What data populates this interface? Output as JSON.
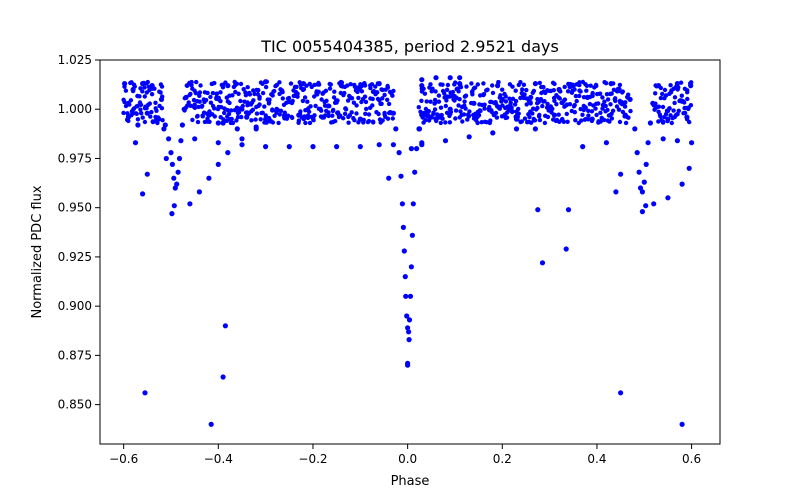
{
  "chart_data": {
    "type": "scatter",
    "title": "TIC 0055404385, period 2.9521 days",
    "xlabel": "Phase",
    "ylabel": "Normalized PDC flux",
    "xlim": [
      -0.65,
      0.66
    ],
    "ylim": [
      0.83,
      1.025
    ],
    "xticks": [
      -0.6,
      -0.4,
      -0.2,
      0.0,
      0.2,
      0.4,
      0.6
    ],
    "xtick_labels": [
      "−0.6",
      "−0.4",
      "−0.2",
      "0.0",
      "0.2",
      "0.4",
      "0.6"
    ],
    "yticks": [
      0.85,
      0.875,
      0.9,
      0.925,
      0.95,
      0.975,
      1.0,
      1.025
    ],
    "ytick_labels": [
      "0.850",
      "0.875",
      "0.900",
      "0.925",
      "0.950",
      "0.975",
      "1.000",
      "1.025"
    ],
    "grid": false,
    "marker_color": "#0000ff",
    "series": [
      {
        "name": "PDC flux",
        "points": [
          [
            -0.598,
            1.013
          ],
          [
            -0.59,
            0.996
          ],
          [
            -0.58,
            1.01
          ],
          [
            -0.57,
            0.992
          ],
          [
            -0.56,
            1.013
          ],
          [
            -0.55,
            0.998
          ],
          [
            -0.54,
            1.012
          ],
          [
            -0.53,
            0.994
          ],
          [
            -0.52,
            1.005
          ],
          [
            -0.512,
            0.992
          ],
          [
            -0.505,
            0.985
          ],
          [
            -0.5,
            0.978
          ],
          [
            -0.497,
            0.972
          ],
          [
            -0.494,
            0.965
          ],
          [
            -0.491,
            0.96
          ],
          [
            -0.488,
            0.962
          ],
          [
            -0.485,
            0.968
          ],
          [
            -0.482,
            0.975
          ],
          [
            -0.479,
            0.984
          ],
          [
            -0.476,
            0.992
          ],
          [
            -0.472,
            1.0
          ],
          [
            -0.468,
            1.006
          ],
          [
            -0.498,
            0.947
          ],
          [
            -0.493,
            0.951
          ],
          [
            -0.51,
            0.975
          ],
          [
            -0.515,
            0.99
          ],
          [
            -0.46,
            1.013
          ],
          [
            -0.42,
            0.998
          ],
          [
            -0.38,
            1.012
          ],
          [
            -0.34,
            0.996
          ],
          [
            -0.3,
            1.014
          ],
          [
            -0.26,
            0.997
          ],
          [
            -0.22,
            1.013
          ],
          [
            -0.18,
            0.996
          ],
          [
            -0.14,
            1.012
          ],
          [
            -0.1,
            0.995
          ],
          [
            -0.06,
            1.013
          ],
          [
            -0.03,
            0.998
          ],
          [
            -0.45,
            0.985
          ],
          [
            -0.4,
            0.983
          ],
          [
            -0.35,
            0.982
          ],
          [
            -0.3,
            0.981
          ],
          [
            -0.25,
            0.981
          ],
          [
            -0.2,
            0.981
          ],
          [
            -0.15,
            0.981
          ],
          [
            -0.1,
            0.981
          ],
          [
            -0.06,
            0.982
          ],
          [
            -0.03,
            0.982
          ],
          [
            -0.46,
            0.952
          ],
          [
            -0.44,
            0.958
          ],
          [
            -0.42,
            0.965
          ],
          [
            -0.4,
            0.972
          ],
          [
            -0.38,
            0.978
          ],
          [
            -0.35,
            0.985
          ],
          [
            -0.32,
            0.99
          ],
          [
            -0.29,
            0.994
          ],
          [
            -0.26,
            0.996
          ],
          [
            -0.23,
            0.997
          ],
          [
            -0.42,
            0.997
          ],
          [
            -0.39,
            0.993
          ],
          [
            -0.36,
            0.99
          ],
          [
            -0.32,
            0.991
          ],
          [
            -0.025,
            0.99
          ],
          [
            -0.018,
            0.978
          ],
          [
            -0.014,
            0.966
          ],
          [
            -0.011,
            0.952
          ],
          [
            -0.009,
            0.94
          ],
          [
            -0.007,
            0.928
          ],
          [
            -0.005,
            0.915
          ],
          [
            -0.004,
            0.905
          ],
          [
            -0.002,
            0.895
          ],
          [
            0.0,
            0.889
          ],
          [
            0.002,
            0.887
          ],
          [
            0.004,
            0.893
          ],
          [
            0.006,
            0.905
          ],
          [
            0.008,
            0.92
          ],
          [
            0.01,
            0.936
          ],
          [
            0.012,
            0.952
          ],
          [
            0.015,
            0.968
          ],
          [
            0.019,
            0.98
          ],
          [
            0.024,
            0.99
          ],
          [
            0.003,
            0.883
          ],
          [
            0.0,
            0.871
          ],
          [
            0.008,
            0.98
          ],
          [
            0.03,
            1.012
          ],
          [
            0.07,
            0.996
          ],
          [
            0.11,
            1.013
          ],
          [
            0.15,
            0.997
          ],
          [
            0.19,
            1.012
          ],
          [
            0.23,
            0.995
          ],
          [
            0.27,
            1.013
          ],
          [
            0.31,
            0.997
          ],
          [
            0.35,
            1.012
          ],
          [
            0.39,
            0.995
          ],
          [
            0.43,
            1.013
          ],
          [
            0.46,
            0.997
          ],
          [
            0.03,
            0.983
          ],
          [
            0.08,
            0.984
          ],
          [
            0.13,
            0.986
          ],
          [
            0.18,
            0.988
          ],
          [
            0.23,
            0.99
          ],
          [
            0.27,
            0.99
          ],
          [
            0.025,
            0.99
          ],
          [
            0.05,
            0.996
          ],
          [
            0.09,
            1.0
          ],
          [
            0.14,
            1.003
          ],
          [
            0.2,
            1.005
          ],
          [
            0.26,
            1.006
          ],
          [
            0.03,
            1.015
          ],
          [
            0.06,
            1.016
          ],
          [
            0.09,
            1.016
          ],
          [
            0.11,
            1.016
          ],
          [
            0.47,
            1.005
          ],
          [
            0.48,
            0.99
          ],
          [
            0.485,
            0.978
          ],
          [
            0.489,
            0.968
          ],
          [
            0.492,
            0.96
          ],
          [
            0.496,
            0.958
          ],
          [
            0.5,
            0.963
          ],
          [
            0.504,
            0.972
          ],
          [
            0.508,
            0.983
          ],
          [
            0.513,
            0.993
          ],
          [
            0.518,
            1.003
          ],
          [
            0.496,
            0.948
          ],
          [
            0.503,
            0.951
          ],
          [
            0.53,
            1.012
          ],
          [
            0.55,
            0.995
          ],
          [
            0.57,
            1.013
          ],
          [
            0.59,
            0.996
          ],
          [
            0.598,
            1.012
          ],
          [
            0.54,
            0.985
          ],
          [
            0.57,
            0.984
          ],
          [
            0.6,
            0.983
          ],
          [
            0.52,
            0.952
          ],
          [
            0.55,
            0.955
          ],
          [
            0.58,
            0.962
          ],
          [
            0.595,
            0.97
          ],
          [
            0.42,
            0.983
          ],
          [
            0.44,
            0.958
          ],
          [
            0.45,
            0.967
          ],
          [
            0.37,
            0.981
          ],
          [
            -0.575,
            0.983
          ],
          [
            -0.56,
            0.957
          ],
          [
            -0.55,
            0.967
          ],
          [
            -0.555,
            0.856
          ],
          [
            -0.415,
            0.84
          ],
          [
            -0.39,
            0.864
          ],
          [
            -0.385,
            0.89
          ],
          [
            -0.4,
            0.993
          ],
          [
            0.0,
            0.87
          ],
          [
            0.03,
            0.982
          ],
          [
            0.275,
            0.949
          ],
          [
            0.285,
            0.922
          ],
          [
            0.335,
            0.929
          ],
          [
            0.34,
            0.949
          ],
          [
            0.45,
            0.856
          ],
          [
            0.58,
            0.84
          ],
          [
            -0.04,
            0.965
          ],
          [
            0.06,
            0.995
          ],
          [
            0.32,
            1.01
          ],
          [
            0.38,
            1.006
          ]
        ]
      }
    ]
  }
}
